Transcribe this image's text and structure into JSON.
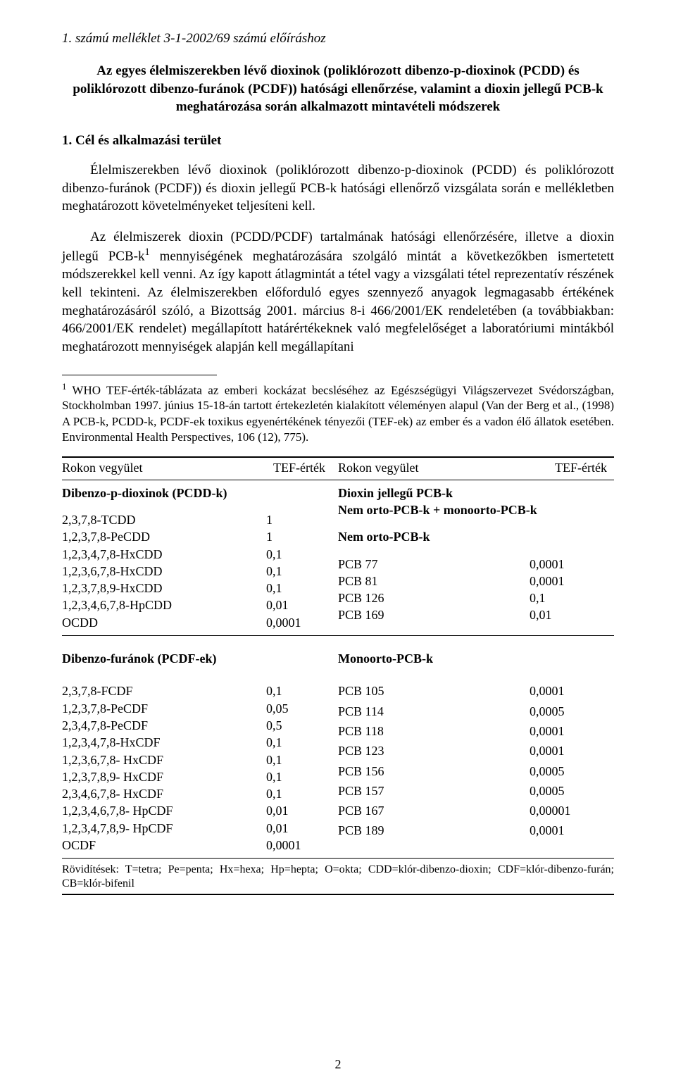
{
  "header_italic": "1. számú melléklet 3-1-2002/69 számú előíráshoz",
  "bold_title": "Az egyes élelmiszerekben lévő dioxinok (poliklórozott dibenzo-p-dioxinok (PCDD) és poliklórozott dibenzo-furánok (PCDF)) hatósági ellenőrzése, valamint a dioxin jellegű PCB-k meghatározása során alkalmazott mintavételi módszerek",
  "section_heading": "1. Cél és alkalmazási terület",
  "para1": "Élelmiszerekben lévő dioxinok (poliklórozott dibenzo-p-dioxinok (PCDD) és poliklórozott dibenzo-furánok (PCDF)) és dioxin jellegű PCB-k hatósági ellenőrző vizsgálata során e mellékletben meghatározott követelményeket teljesíteni kell.",
  "para2_a": "Az élelmiszerek dioxin (PCDD/PCDF) tartalmának hatósági ellenőrzésére, illetve a dioxin jellegű PCB-k",
  "para2_b": " mennyiségének meghatározására szolgáló mintát a következőkben ismertetett módszerekkel kell venni. Az így kapott átlagmintát a tétel vagy a vizsgálati tétel reprezentatív részének kell tekinteni. Az élelmiszerekben előforduló egyes szennyező anyagok legmagasabb értékének meghatározásáról szóló, a Bizottság 2001. március 8-i 466/2001/EK rendeletében (a továbbiakban: 466/2001/EK rendelet) megállapított határértékeknek való megfelelőséget a laboratóriumi mintákból meghatározott mennyiségek alapján kell megállapítani",
  "footnote_sup": "1",
  "footnote_text": " WHO TEF-érték-táblázata az emberi kockázat becsléséhez az Egészségügyi Világszervezet Svédországban, Stockholmban 1997. június 15-18-án tartott értekezletén kialakított véleményen alapul (Van der Berg et al., (1998) A PCB-k, PCDD-k, PCDF-ek toxikus egyenértékének tényezői (TEF-ek) az ember és a vadon élő állatok esetében. Environmental Health Perspectives, 106 (12), 775).",
  "tableHeader": {
    "colA": "Rokon vegyület",
    "colB": "TEF-érték",
    "colC": "Rokon vegyület",
    "colD": "TEF-érték"
  },
  "leftGroup1": {
    "title": "Dibenzo-p-dioxinok (PCDD-k)",
    "rows": [
      {
        "lbl": "2,3,7,8-TCDD",
        "val": "1"
      },
      {
        "lbl": "1,2,3,7,8-PeCDD",
        "val": "1"
      },
      {
        "lbl": "1,2,3,4,7,8-HxCDD",
        "val": "0,1"
      },
      {
        "lbl": "1,2,3,6,7,8-HxCDD",
        "val": "0,1"
      },
      {
        "lbl": "1,2,3,7,8,9-HxCDD",
        "val": "0,1"
      },
      {
        "lbl": "1,2,3,4,6,7,8-HpCDD",
        "val": "0,01"
      },
      {
        "lbl": "OCDD",
        "val": "0,0001"
      }
    ]
  },
  "rightGroup1": {
    "title1": "Dioxin jellegű PCB-k",
    "title2": "Nem orto-PCB-k + monoorto-PCB-k",
    "sub": "Nem orto-PCB-k",
    "rows": [
      {
        "lbl": "PCB 77",
        "val": "0,0001"
      },
      {
        "lbl": "PCB 81",
        "val": "0,0001"
      },
      {
        "lbl": "PCB 126",
        "val": "0,1"
      },
      {
        "lbl": "PCB 169",
        "val": "0,01"
      }
    ]
  },
  "leftGroup2": {
    "title": "Dibenzo-furánok (PCDF-ek)",
    "rows": [
      {
        "lbl": "2,3,7,8-FCDF",
        "val": "0,1"
      },
      {
        "lbl": "1,2,3,7,8-PeCDF",
        "val": "0,05"
      },
      {
        "lbl": "2,3,4,7,8-PeCDF",
        "val": "0,5"
      },
      {
        "lbl": "1,2,3,4,7,8-HxCDF",
        "val": "0,1"
      },
      {
        "lbl": "1,2,3,6,7,8- HxCDF",
        "val": "0,1"
      },
      {
        "lbl": "1,2,3,7,8,9- HxCDF",
        "val": "0,1"
      },
      {
        "lbl": "2,3,4,6,7,8- HxCDF",
        "val": "0,1"
      },
      {
        "lbl": "1,2,3,4,6,7,8- HpCDF",
        "val": "0,01"
      },
      {
        "lbl": "1,2,3,4,7,8,9- HpCDF",
        "val": "0,01"
      },
      {
        "lbl": "OCDF",
        "val": "0,0001"
      }
    ]
  },
  "rightGroup2": {
    "title": "Monoorto-PCB-k",
    "rows": [
      {
        "lbl": "PCB 105",
        "val": "0,0001"
      },
      {
        "lbl": "PCB 114",
        "val": "0,0005"
      },
      {
        "lbl": "PCB 118",
        "val": "0,0001"
      },
      {
        "lbl": "PCB 123",
        "val": "0,0001"
      },
      {
        "lbl": "PCB 156",
        "val": "0,0005"
      },
      {
        "lbl": "PCB 157",
        "val": "0,0005"
      },
      {
        "lbl": "PCB 167",
        "val": "0,00001"
      },
      {
        "lbl": "PCB 189",
        "val": "0,0001"
      }
    ]
  },
  "abbrev": "Rövidítések: T=tetra; Pe=penta; Hx=hexa; Hp=hepta; O=okta; CDD=klór-dibenzo-dioxin; CDF=klór-dibenzo-furán; CB=klór-bifenil",
  "pageNumber": "2"
}
